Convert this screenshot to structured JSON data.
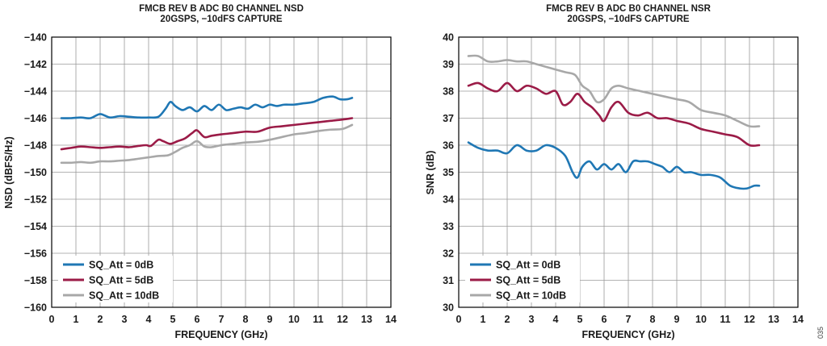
{
  "figure_id": "035",
  "chart_data": [
    {
      "type": "line",
      "title": "FMCB REV B ADC B0 CHANNEL NSD",
      "subtitle": "20GSPS, −10dFS CAPTURE",
      "xlabel": "FREQUENCY (GHz)",
      "ylabel": "NSD (dBFS/Hz)",
      "xlim": [
        0,
        14
      ],
      "ylim": [
        -160,
        -140
      ],
      "xticks": [
        "0",
        "1",
        "2",
        "3",
        "4",
        "5",
        "6",
        "7",
        "8",
        "9",
        "10",
        "11",
        "12",
        "13",
        "14"
      ],
      "yticks": [
        "−160",
        "−158",
        "−156",
        "−154",
        "−152",
        "−150",
        "−148",
        "−146",
        "−144",
        "−142",
        "−140"
      ],
      "grid": true,
      "legend_position": "bottom-left",
      "series": [
        {
          "name": "SQ_Att = 0dB",
          "color": "#1f77b4",
          "x": [
            0.4,
            0.8,
            1.2,
            1.6,
            2.0,
            2.4,
            2.8,
            3.2,
            3.6,
            4.0,
            4.4,
            4.7,
            4.9,
            5.1,
            5.4,
            5.7,
            6.0,
            6.3,
            6.6,
            6.9,
            7.2,
            7.5,
            7.8,
            8.1,
            8.4,
            8.7,
            9.0,
            9.3,
            9.6,
            10.0,
            10.4,
            10.8,
            11.2,
            11.6,
            11.9,
            12.2,
            12.4
          ],
          "y": [
            -146.0,
            -146.0,
            -145.95,
            -146.0,
            -145.7,
            -145.95,
            -145.85,
            -145.9,
            -145.95,
            -145.95,
            -145.9,
            -145.3,
            -144.8,
            -145.1,
            -145.4,
            -145.2,
            -145.5,
            -145.1,
            -145.4,
            -145.0,
            -145.4,
            -145.3,
            -145.2,
            -145.3,
            -145.0,
            -145.2,
            -145.0,
            -145.1,
            -145.0,
            -145.0,
            -144.9,
            -144.8,
            -144.5,
            -144.4,
            -144.6,
            -144.6,
            -144.5
          ]
        },
        {
          "name": "SQ_Att = 5dB",
          "color": "#9b1b47",
          "x": [
            0.4,
            0.8,
            1.2,
            1.6,
            2.0,
            2.4,
            2.8,
            3.2,
            3.6,
            3.9,
            4.1,
            4.4,
            4.6,
            4.9,
            5.2,
            5.5,
            5.8,
            6.0,
            6.3,
            6.6,
            7.0,
            7.5,
            8.0,
            8.5,
            9.0,
            9.5,
            10.0,
            10.5,
            11.0,
            11.5,
            12.0,
            12.4
          ],
          "y": [
            -148.3,
            -148.2,
            -148.1,
            -148.15,
            -148.2,
            -148.15,
            -148.1,
            -148.15,
            -148.05,
            -148.0,
            -148.05,
            -147.6,
            -147.7,
            -147.9,
            -147.7,
            -147.5,
            -147.1,
            -146.9,
            -147.4,
            -147.3,
            -147.2,
            -147.1,
            -147.0,
            -147.0,
            -146.7,
            -146.6,
            -146.5,
            -146.4,
            -146.3,
            -146.2,
            -146.1,
            -146.0
          ]
        },
        {
          "name": "SQ_Att = 10dB",
          "color": "#a8a8a8",
          "x": [
            0.4,
            0.8,
            1.2,
            1.6,
            2.0,
            2.4,
            2.8,
            3.2,
            3.6,
            4.0,
            4.4,
            4.8,
            5.1,
            5.4,
            5.7,
            6.0,
            6.3,
            6.6,
            7.0,
            7.5,
            8.0,
            8.5,
            9.0,
            9.5,
            10.0,
            10.5,
            11.0,
            11.5,
            12.0,
            12.4
          ],
          "y": [
            -149.3,
            -149.3,
            -149.25,
            -149.3,
            -149.2,
            -149.2,
            -149.15,
            -149.1,
            -149.0,
            -148.9,
            -148.8,
            -148.75,
            -148.5,
            -148.2,
            -148.0,
            -147.7,
            -148.1,
            -148.15,
            -148.0,
            -147.9,
            -147.8,
            -147.75,
            -147.6,
            -147.4,
            -147.2,
            -147.1,
            -146.95,
            -146.85,
            -146.8,
            -146.5
          ]
        }
      ]
    },
    {
      "type": "line",
      "title": "FMCB REV B ADC B0 CHANNEL NSR",
      "subtitle": "20GSPS, −10dFS CAPTURE",
      "xlabel": "FREQUENCY (GHz)",
      "ylabel": "SNR (dB)",
      "xlim": [
        0,
        14
      ],
      "ylim": [
        30,
        40
      ],
      "xticks": [
        "0",
        "1",
        "2",
        "3",
        "4",
        "5",
        "6",
        "7",
        "8",
        "9",
        "10",
        "11",
        "12",
        "13",
        "14"
      ],
      "yticks": [
        "30",
        "31",
        "32",
        "33",
        "34",
        "35",
        "36",
        "37",
        "38",
        "39",
        "40"
      ],
      "grid": true,
      "legend_position": "bottom-left",
      "series": [
        {
          "name": "SQ_Att = 0dB",
          "color": "#1f77b4",
          "x": [
            0.4,
            0.8,
            1.2,
            1.6,
            2.0,
            2.4,
            2.8,
            3.2,
            3.6,
            4.0,
            4.4,
            4.7,
            4.9,
            5.1,
            5.4,
            5.7,
            6.0,
            6.3,
            6.6,
            6.9,
            7.2,
            7.5,
            7.8,
            8.1,
            8.4,
            8.7,
            9.0,
            9.3,
            9.6,
            10.0,
            10.4,
            10.8,
            11.2,
            11.6,
            11.9,
            12.2,
            12.4
          ],
          "y": [
            36.1,
            35.9,
            35.8,
            35.8,
            35.7,
            36.0,
            35.8,
            35.8,
            36.0,
            35.9,
            35.6,
            35.0,
            34.8,
            35.2,
            35.4,
            35.1,
            35.3,
            35.1,
            35.3,
            35.0,
            35.4,
            35.4,
            35.4,
            35.3,
            35.2,
            35.0,
            35.2,
            35.0,
            35.0,
            34.9,
            34.9,
            34.8,
            34.5,
            34.4,
            34.4,
            34.5,
            34.5
          ]
        },
        {
          "name": "SQ_Att = 5dB",
          "color": "#9b1b47",
          "x": [
            0.4,
            0.8,
            1.2,
            1.6,
            2.0,
            2.4,
            2.8,
            3.2,
            3.6,
            4.0,
            4.3,
            4.6,
            4.9,
            5.2,
            5.5,
            5.8,
            6.0,
            6.3,
            6.6,
            7.0,
            7.4,
            7.8,
            8.2,
            8.6,
            9.0,
            9.5,
            10.0,
            10.5,
            11.0,
            11.5,
            12.0,
            12.4
          ],
          "y": [
            38.2,
            38.3,
            38.1,
            38.0,
            38.3,
            38.0,
            38.2,
            38.1,
            37.9,
            38.0,
            37.5,
            37.6,
            37.9,
            37.6,
            37.4,
            37.1,
            36.9,
            37.4,
            37.6,
            37.2,
            37.1,
            37.2,
            37.0,
            37.0,
            36.9,
            36.8,
            36.6,
            36.5,
            36.4,
            36.3,
            36.0,
            36.0
          ]
        },
        {
          "name": "SQ_Att = 10dB",
          "color": "#a8a8a8",
          "x": [
            0.4,
            0.8,
            1.2,
            1.6,
            2.0,
            2.4,
            2.8,
            3.2,
            3.6,
            4.0,
            4.4,
            4.8,
            5.1,
            5.4,
            5.7,
            6.0,
            6.3,
            6.6,
            7.0,
            7.5,
            8.0,
            8.5,
            9.0,
            9.5,
            10.0,
            10.5,
            11.0,
            11.5,
            12.0,
            12.4
          ],
          "y": [
            39.3,
            39.3,
            39.1,
            39.1,
            39.15,
            39.1,
            39.1,
            39.0,
            38.9,
            38.8,
            38.7,
            38.6,
            38.2,
            38.0,
            37.6,
            37.7,
            38.1,
            38.2,
            38.1,
            38.0,
            37.9,
            37.8,
            37.7,
            37.6,
            37.3,
            37.2,
            37.1,
            36.9,
            36.7,
            36.7
          ]
        }
      ]
    }
  ]
}
